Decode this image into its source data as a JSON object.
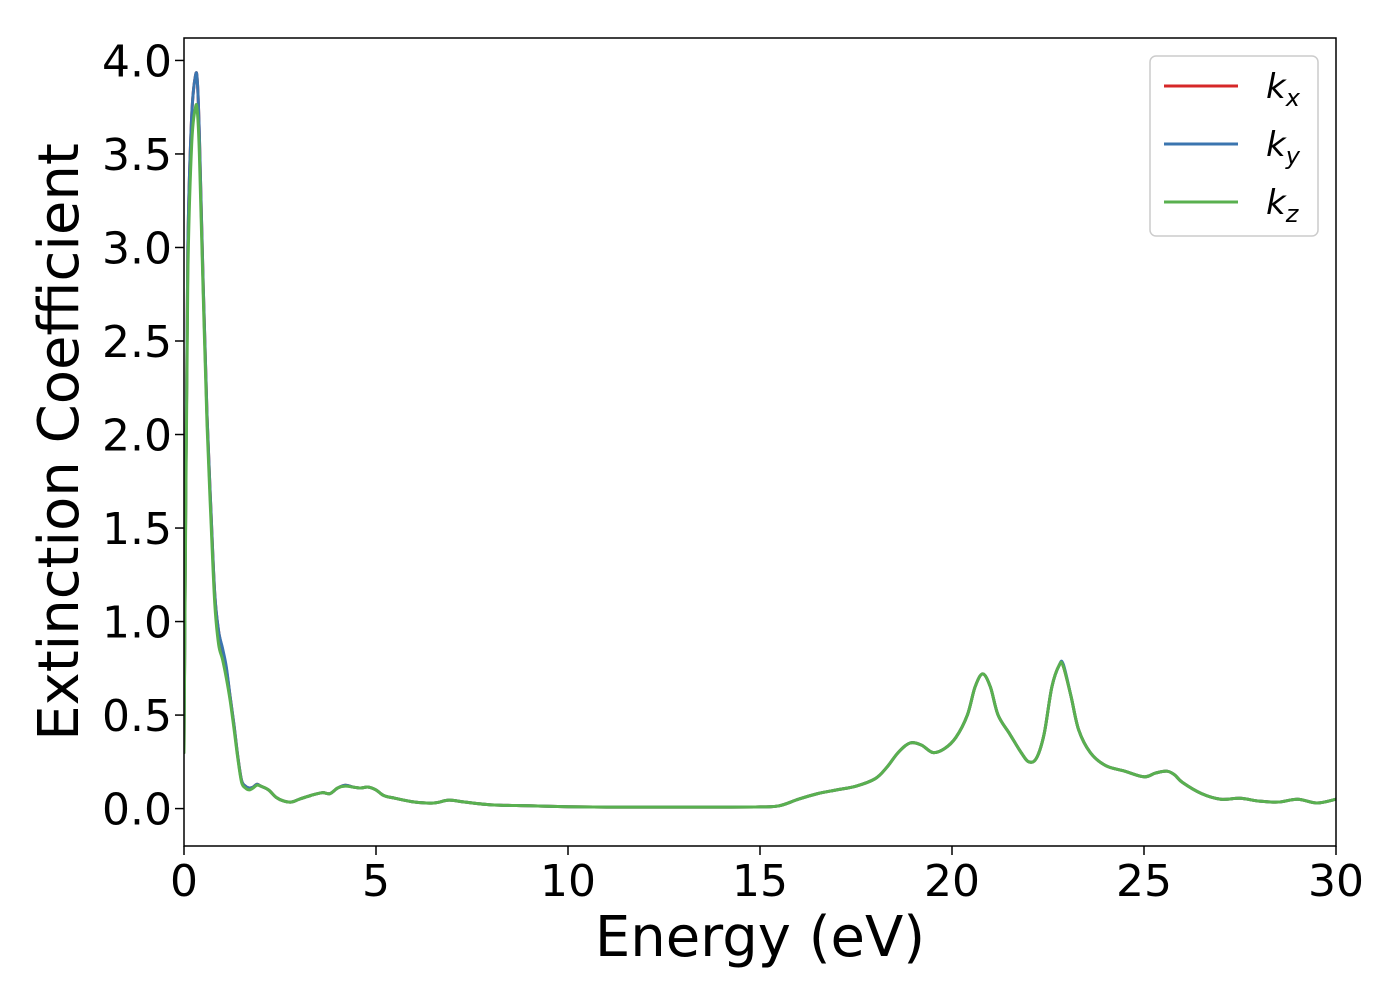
{
  "chart_data": {
    "type": "line",
    "title": "",
    "xlabel": "Energy (eV)",
    "ylabel": "Extinction Coefficient",
    "xlim": [
      0,
      30
    ],
    "ylim": [
      -0.2,
      4.12
    ],
    "xticks": [
      0,
      5,
      10,
      15,
      20,
      25,
      30
    ],
    "xtick_labels": [
      "0",
      "5",
      "10",
      "15",
      "20",
      "25",
      "30"
    ],
    "yticks": [
      0.0,
      0.5,
      1.0,
      1.5,
      2.0,
      2.5,
      3.0,
      3.5,
      4.0
    ],
    "ytick_labels": [
      "0.0",
      "0.5",
      "1.0",
      "1.5",
      "2.0",
      "2.5",
      "3.0",
      "3.5",
      "4.0"
    ],
    "grid": false,
    "legend_position": "top-right",
    "series": [
      {
        "name": "k_x",
        "legend_main": "k",
        "legend_sub": "x",
        "color": "#d62728",
        "x": [
          0,
          0.05,
          0.1,
          0.2,
          0.3,
          0.35,
          0.4,
          0.5,
          0.6,
          0.7,
          0.8,
          0.9,
          1.0,
          1.1,
          1.2,
          1.3,
          1.4,
          1.5,
          1.6,
          1.7,
          1.8,
          1.9,
          2.0,
          2.2,
          2.4,
          2.6,
          2.8,
          3.0,
          3.3,
          3.6,
          3.8,
          4.0,
          4.2,
          4.4,
          4.6,
          4.8,
          5.0,
          5.2,
          5.5,
          6.0,
          6.5,
          6.9,
          7.3,
          8.0,
          9.0,
          10.0,
          11.0,
          12.0,
          13.0,
          14.0,
          15.0,
          15.5,
          16.0,
          16.5,
          17.0,
          17.5,
          18.0,
          18.3,
          18.6,
          18.9,
          19.2,
          19.5,
          19.8,
          20.1,
          20.4,
          20.6,
          20.8,
          21.0,
          21.2,
          21.5,
          21.8,
          22.0,
          22.2,
          22.4,
          22.6,
          22.8,
          22.9,
          23.1,
          23.3,
          23.6,
          24.0,
          24.5,
          25.0,
          25.3,
          25.6,
          25.8,
          26.0,
          26.5,
          27.0,
          27.5,
          28.0,
          28.5,
          29.0,
          29.5,
          30.0
        ],
        "y": [
          0.3,
          1.8,
          3.0,
          3.7,
          3.92,
          3.88,
          3.6,
          2.8,
          2.1,
          1.6,
          1.15,
          0.95,
          0.85,
          0.75,
          0.6,
          0.45,
          0.28,
          0.15,
          0.12,
          0.11,
          0.115,
          0.13,
          0.12,
          0.1,
          0.06,
          0.04,
          0.035,
          0.05,
          0.07,
          0.085,
          0.08,
          0.11,
          0.125,
          0.115,
          0.11,
          0.115,
          0.1,
          0.07,
          0.055,
          0.035,
          0.03,
          0.045,
          0.035,
          0.02,
          0.015,
          0.01,
          0.008,
          0.008,
          0.008,
          0.008,
          0.009,
          0.015,
          0.05,
          0.08,
          0.1,
          0.12,
          0.16,
          0.22,
          0.3,
          0.35,
          0.34,
          0.3,
          0.32,
          0.38,
          0.5,
          0.65,
          0.72,
          0.65,
          0.5,
          0.4,
          0.3,
          0.25,
          0.27,
          0.4,
          0.65,
          0.77,
          0.76,
          0.6,
          0.42,
          0.3,
          0.23,
          0.2,
          0.17,
          0.19,
          0.2,
          0.18,
          0.14,
          0.08,
          0.05,
          0.055,
          0.04,
          0.035,
          0.05,
          0.03,
          0.05
        ]
      },
      {
        "name": "k_y",
        "legend_main": "k",
        "legend_sub": "y",
        "color": "#3b75af",
        "x": [
          0,
          0.05,
          0.1,
          0.2,
          0.3,
          0.35,
          0.4,
          0.5,
          0.6,
          0.7,
          0.8,
          0.9,
          1.0,
          1.1,
          1.2,
          1.3,
          1.4,
          1.5,
          1.6,
          1.7,
          1.8,
          1.9,
          2.0,
          2.2,
          2.4,
          2.6,
          2.8,
          3.0,
          3.3,
          3.6,
          3.8,
          4.0,
          4.2,
          4.4,
          4.6,
          4.8,
          5.0,
          5.2,
          5.5,
          6.0,
          6.5,
          6.9,
          7.3,
          8.0,
          9.0,
          10.0,
          11.0,
          12.0,
          13.0,
          14.0,
          15.0,
          15.5,
          16.0,
          16.5,
          17.0,
          17.5,
          18.0,
          18.3,
          18.6,
          18.9,
          19.2,
          19.5,
          19.8,
          20.1,
          20.4,
          20.6,
          20.8,
          21.0,
          21.2,
          21.5,
          21.8,
          22.0,
          22.2,
          22.4,
          22.6,
          22.8,
          22.9,
          23.1,
          23.3,
          23.6,
          24.0,
          24.5,
          25.0,
          25.3,
          25.6,
          25.8,
          26.0,
          26.5,
          27.0,
          27.5,
          28.0,
          28.5,
          29.0,
          29.5,
          30.0
        ],
        "y": [
          0.3,
          1.8,
          3.0,
          3.7,
          3.92,
          3.88,
          3.6,
          2.8,
          2.1,
          1.6,
          1.15,
          0.95,
          0.86,
          0.76,
          0.6,
          0.45,
          0.28,
          0.15,
          0.12,
          0.11,
          0.115,
          0.13,
          0.12,
          0.1,
          0.06,
          0.04,
          0.035,
          0.05,
          0.07,
          0.085,
          0.08,
          0.11,
          0.125,
          0.115,
          0.11,
          0.115,
          0.1,
          0.07,
          0.055,
          0.035,
          0.03,
          0.045,
          0.035,
          0.02,
          0.015,
          0.01,
          0.008,
          0.008,
          0.008,
          0.008,
          0.009,
          0.015,
          0.05,
          0.08,
          0.1,
          0.12,
          0.16,
          0.22,
          0.3,
          0.35,
          0.34,
          0.3,
          0.32,
          0.38,
          0.5,
          0.65,
          0.72,
          0.65,
          0.5,
          0.4,
          0.3,
          0.25,
          0.27,
          0.4,
          0.65,
          0.77,
          0.77,
          0.6,
          0.42,
          0.3,
          0.23,
          0.2,
          0.17,
          0.19,
          0.2,
          0.18,
          0.14,
          0.08,
          0.05,
          0.055,
          0.04,
          0.035,
          0.05,
          0.03,
          0.05
        ]
      },
      {
        "name": "k_z",
        "legend_main": "k",
        "legend_sub": "z",
        "color": "#59b04f",
        "x": [
          0,
          0.05,
          0.1,
          0.2,
          0.3,
          0.35,
          0.4,
          0.5,
          0.6,
          0.7,
          0.8,
          0.9,
          1.0,
          1.1,
          1.2,
          1.3,
          1.4,
          1.5,
          1.6,
          1.7,
          1.8,
          1.9,
          2.0,
          2.2,
          2.4,
          2.6,
          2.8,
          3.0,
          3.3,
          3.6,
          3.8,
          4.0,
          4.2,
          4.4,
          4.6,
          4.8,
          5.0,
          5.2,
          5.5,
          6.0,
          6.5,
          6.9,
          7.3,
          8.0,
          9.0,
          10.0,
          11.0,
          12.0,
          13.0,
          14.0,
          15.0,
          15.5,
          16.0,
          16.5,
          17.0,
          17.5,
          18.0,
          18.3,
          18.6,
          18.9,
          19.2,
          19.5,
          19.8,
          20.1,
          20.4,
          20.6,
          20.8,
          21.0,
          21.2,
          21.5,
          21.8,
          22.0,
          22.2,
          22.4,
          22.6,
          22.8,
          22.9,
          23.1,
          23.3,
          23.6,
          24.0,
          24.5,
          25.0,
          25.3,
          25.6,
          25.8,
          26.0,
          26.5,
          27.0,
          27.5,
          28.0,
          28.5,
          29.0,
          29.5,
          30.0
        ],
        "y": [
          0.3,
          1.7,
          2.85,
          3.55,
          3.75,
          3.72,
          3.5,
          2.75,
          2.05,
          1.55,
          1.1,
          0.88,
          0.8,
          0.7,
          0.58,
          0.43,
          0.27,
          0.14,
          0.11,
          0.1,
          0.11,
          0.125,
          0.12,
          0.1,
          0.06,
          0.04,
          0.035,
          0.05,
          0.07,
          0.085,
          0.08,
          0.11,
          0.12,
          0.115,
          0.11,
          0.115,
          0.1,
          0.07,
          0.055,
          0.035,
          0.03,
          0.045,
          0.035,
          0.02,
          0.015,
          0.01,
          0.008,
          0.008,
          0.008,
          0.008,
          0.009,
          0.015,
          0.05,
          0.08,
          0.1,
          0.12,
          0.16,
          0.22,
          0.3,
          0.35,
          0.34,
          0.3,
          0.32,
          0.38,
          0.5,
          0.65,
          0.72,
          0.65,
          0.5,
          0.4,
          0.3,
          0.25,
          0.27,
          0.4,
          0.65,
          0.77,
          0.76,
          0.6,
          0.42,
          0.3,
          0.23,
          0.2,
          0.17,
          0.19,
          0.2,
          0.18,
          0.14,
          0.08,
          0.05,
          0.055,
          0.04,
          0.035,
          0.05,
          0.03,
          0.05
        ]
      }
    ]
  }
}
